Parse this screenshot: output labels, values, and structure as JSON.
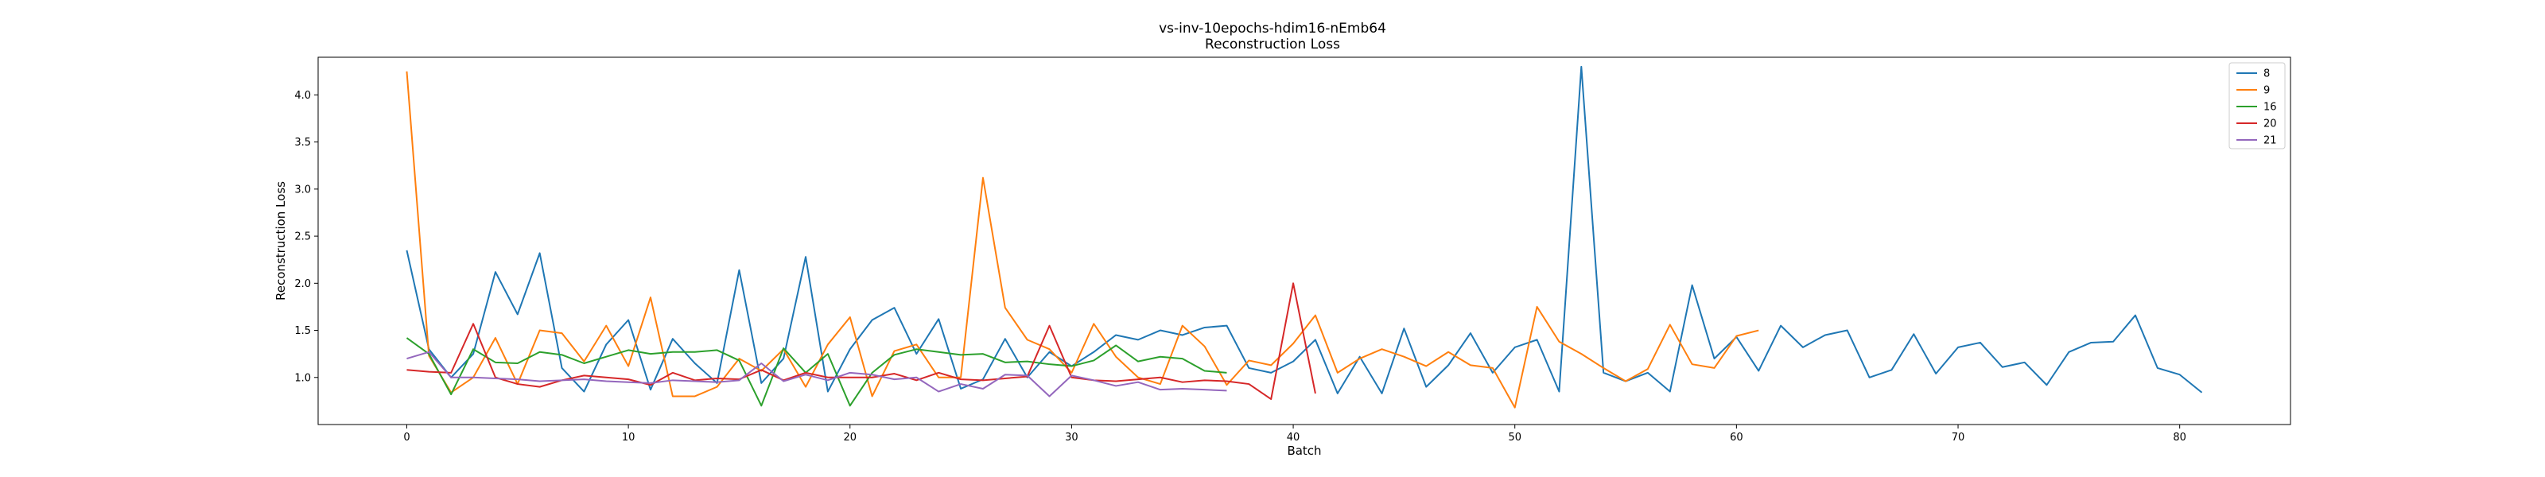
{
  "chart_data": {
    "type": "line",
    "title": "vs-inv-10epochs-hdim16-nEmb64",
    "subtitle": "Reconstruction Loss",
    "xlabel": "Batch",
    "ylabel": "Reconstruction Loss",
    "xlim": [
      -4,
      85
    ],
    "ylim": [
      0.5,
      4.4
    ],
    "xticks": [
      "0",
      "10",
      "20",
      "30",
      "40",
      "50",
      "60",
      "70",
      "80"
    ],
    "yticks": [
      "1.0",
      "1.5",
      "2.0",
      "2.5",
      "3.0",
      "3.5",
      "4.0"
    ],
    "grid": false,
    "legend_position": "top-right",
    "series": [
      {
        "name": "8",
        "color": "#1f77b4",
        "values": [
          2.35,
          1.3,
          1.0,
          1.25,
          2.12,
          1.67,
          2.32,
          1.1,
          0.85,
          1.35,
          1.61,
          0.87,
          1.41,
          1.15,
          0.94,
          2.14,
          0.94,
          1.2,
          2.28,
          0.85,
          1.3,
          1.61,
          1.74,
          1.25,
          1.62,
          0.88,
          0.98,
          1.41,
          1.0,
          1.27,
          1.12,
          1.27,
          1.45,
          1.4,
          1.5,
          1.45,
          1.53,
          1.55,
          1.1,
          1.05,
          1.17,
          1.4,
          0.83,
          1.22,
          0.83,
          1.52,
          0.9,
          1.13,
          1.47,
          1.05,
          1.32,
          1.4,
          0.85,
          4.3,
          1.05,
          0.96,
          1.05,
          0.85,
          1.98,
          1.2,
          1.43,
          1.07,
          1.55,
          1.32,
          1.45,
          1.5,
          1.0,
          1.08,
          1.46,
          1.04,
          1.32,
          1.37,
          1.11,
          1.16,
          0.92,
          1.27,
          1.37,
          1.38,
          1.66,
          1.1,
          1.03,
          0.84
        ]
      },
      {
        "name": "9",
        "color": "#ff7f0e",
        "values": [
          4.25,
          1.23,
          0.84,
          1.0,
          1.42,
          0.93,
          1.5,
          1.47,
          1.17,
          1.55,
          1.12,
          1.85,
          0.8,
          0.8,
          0.9,
          1.2,
          1.07,
          1.3,
          0.9,
          1.35,
          1.64,
          0.8,
          1.28,
          1.35,
          1.0,
          1.0,
          3.12,
          1.74,
          1.4,
          1.3,
          1.05,
          1.57,
          1.22,
          1.0,
          0.93,
          1.55,
          1.33,
          0.92,
          1.18,
          1.13,
          1.36,
          1.66,
          1.05,
          1.2,
          1.3,
          1.22,
          1.12,
          1.27,
          1.13,
          1.1,
          0.68,
          1.75,
          1.38,
          1.25,
          1.1,
          0.96,
          1.09,
          1.56,
          1.14,
          1.1,
          1.44,
          1.5
        ]
      },
      {
        "name": "16",
        "color": "#2ca02c",
        "values": [
          1.42,
          1.25,
          0.82,
          1.3,
          1.16,
          1.15,
          1.27,
          1.24,
          1.15,
          1.22,
          1.29,
          1.25,
          1.27,
          1.27,
          1.29,
          1.18,
          0.7,
          1.31,
          1.05,
          1.25,
          0.7,
          1.05,
          1.24,
          1.3,
          1.27,
          1.24,
          1.25,
          1.16,
          1.17,
          1.14,
          1.12,
          1.18,
          1.34,
          1.17,
          1.22,
          1.2,
          1.07,
          1.05
        ]
      },
      {
        "name": "20",
        "color": "#d62728",
        "values": [
          1.08,
          1.06,
          1.05,
          1.57,
          1.0,
          0.93,
          0.9,
          0.97,
          1.02,
          1.0,
          0.98,
          0.92,
          1.05,
          0.97,
          0.99,
          0.98,
          1.08,
          0.97,
          1.05,
          1.0,
          1.0,
          1.0,
          1.04,
          0.97,
          1.05,
          0.98,
          0.97,
          0.99,
          1.01,
          1.55,
          1.0,
          0.97,
          0.96,
          0.98,
          1.0,
          0.95,
          0.97,
          0.96,
          0.93,
          0.77,
          2.0,
          0.83
        ]
      },
      {
        "name": "21",
        "color": "#9467bd",
        "values": [
          1.2,
          1.27,
          1.0,
          1.0,
          0.99,
          0.98,
          0.96,
          0.97,
          0.98,
          0.96,
          0.95,
          0.94,
          0.97,
          0.96,
          0.95,
          0.97,
          1.15,
          0.96,
          1.03,
          0.97,
          1.05,
          1.03,
          0.98,
          1.0,
          0.85,
          0.93,
          0.88,
          1.03,
          1.02,
          0.8,
          1.02,
          0.97,
          0.91,
          0.95,
          0.87,
          0.88,
          0.87,
          0.86
        ]
      }
    ]
  }
}
